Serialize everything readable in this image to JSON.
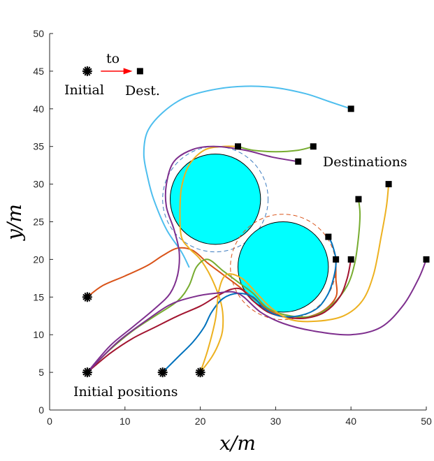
{
  "chart_data": {
    "type": "line",
    "xlabel": "x/m",
    "ylabel": "y/m",
    "xlim": [
      0,
      50
    ],
    "ylim": [
      0,
      50
    ],
    "xticks": [
      "0",
      "10",
      "20",
      "30",
      "40",
      "50"
    ],
    "yticks": [
      "0",
      "5",
      "10",
      "15",
      "20",
      "25",
      "30",
      "35",
      "40",
      "45",
      "50"
    ],
    "obstacles": [
      {
        "name": "obstacle-1",
        "center": [
          22,
          28
        ],
        "radius": 6,
        "safety_radius": 7,
        "safety_color": "#3b7bbf"
      },
      {
        "name": "obstacle-2",
        "center": [
          31,
          19
        ],
        "radius": 6,
        "safety_radius": 7,
        "safety_color": "#d95319"
      }
    ],
    "obstacle_fill": "#00ffff",
    "initial_positions": [
      [
        5,
        15
      ],
      [
        5,
        5
      ],
      [
        15,
        5
      ],
      [
        20,
        5
      ]
    ],
    "destinations": [
      [
        25,
        35
      ],
      [
        35,
        35
      ],
      [
        33,
        33
      ],
      [
        40,
        40
      ],
      [
        37,
        23
      ],
      [
        38,
        20
      ],
      [
        40,
        20
      ],
      [
        41,
        28
      ],
      [
        45,
        30
      ],
      [
        50,
        20
      ]
    ],
    "legend_example": {
      "initial": [
        5,
        45
      ],
      "destination": [
        12,
        45
      ]
    },
    "annotations": {
      "initial": "Initial",
      "to": "to",
      "dest": "Dest.",
      "destinations": "Destinations",
      "initial_positions": "Initial positions"
    },
    "series": [
      {
        "name": "traj-lightblue",
        "color": "#4DBEEE",
        "points": [
          [
            18.5,
            19
          ],
          [
            17.5,
            21
          ],
          [
            15.5,
            24
          ],
          [
            13.8,
            28
          ],
          [
            13,
            31
          ],
          [
            12.5,
            34
          ],
          [
            13,
            37
          ],
          [
            15,
            39.5
          ],
          [
            18,
            41.5
          ],
          [
            22,
            42.6
          ],
          [
            26,
            43
          ],
          [
            30,
            42.8
          ],
          [
            34,
            42
          ],
          [
            37,
            41
          ],
          [
            40,
            40
          ]
        ]
      },
      {
        "name": "traj-orange",
        "color": "#D95319",
        "points": [
          [
            5,
            15
          ],
          [
            7,
            16.5
          ],
          [
            10,
            17.8
          ],
          [
            13,
            19.2
          ],
          [
            15,
            20.5
          ],
          [
            17,
            21.5
          ],
          [
            19,
            21.2
          ],
          [
            21,
            19.5
          ],
          [
            23,
            18
          ],
          [
            25,
            16.5
          ],
          [
            27.5,
            14.5
          ],
          [
            30,
            12.8
          ],
          [
            33,
            12.2
          ],
          [
            36,
            13
          ],
          [
            38,
            15
          ],
          [
            38,
            17.5
          ],
          [
            38,
            20
          ]
        ]
      },
      {
        "name": "traj-yellow",
        "color": "#EDB120",
        "points": [
          [
            20,
            5
          ],
          [
            21.5,
            7
          ],
          [
            22.5,
            9
          ],
          [
            23,
            11
          ],
          [
            22.8,
            14
          ],
          [
            21.5,
            17.5
          ],
          [
            20,
            20
          ],
          [
            18.5,
            21.5
          ],
          [
            17.5,
            23
          ],
          [
            17.3,
            26
          ],
          [
            17.5,
            29.5
          ],
          [
            18.5,
            32.5
          ],
          [
            20.5,
            34.5
          ],
          [
            23,
            35
          ],
          [
            25,
            35
          ]
        ]
      },
      {
        "name": "traj-green",
        "color": "#77AC30",
        "points": [
          [
            5,
            5
          ],
          [
            8,
            8
          ],
          [
            11,
            10.5
          ],
          [
            14,
            12.5
          ],
          [
            17,
            14.5
          ],
          [
            18.5,
            16.5
          ],
          [
            19.5,
            19
          ],
          [
            21,
            20
          ],
          [
            23,
            18.5
          ],
          [
            25,
            17
          ],
          [
            27,
            15.5
          ],
          [
            29,
            13.5
          ],
          [
            32,
            12.5
          ],
          [
            35,
            12.5
          ],
          [
            37.5,
            14
          ],
          [
            39.5,
            16.5
          ],
          [
            40.5,
            19.5
          ],
          [
            41,
            23
          ],
          [
            41.2,
            26
          ],
          [
            41,
            28
          ]
        ]
      },
      {
        "name": "traj-darkred",
        "color": "#A2142F",
        "points": [
          [
            5,
            5
          ],
          [
            8,
            7.5
          ],
          [
            11,
            9.5
          ],
          [
            14,
            11
          ],
          [
            17,
            12.5
          ],
          [
            20,
            13.8
          ],
          [
            22,
            15
          ],
          [
            24,
            16
          ],
          [
            25.5,
            16
          ],
          [
            27,
            14.5
          ],
          [
            29,
            13
          ],
          [
            31.5,
            12.3
          ],
          [
            34,
            12.2
          ],
          [
            36.5,
            13
          ],
          [
            38.5,
            15
          ],
          [
            39.5,
            17.5
          ],
          [
            40,
            20
          ]
        ]
      },
      {
        "name": "traj-purple-1",
        "color": "#7E2F8E",
        "points": [
          [
            5,
            5
          ],
          [
            8,
            8.5
          ],
          [
            11,
            11
          ],
          [
            14,
            13.5
          ],
          [
            16,
            15.5
          ],
          [
            17,
            18
          ],
          [
            17.2,
            21
          ],
          [
            16.5,
            24
          ],
          [
            15.5,
            27
          ],
          [
            15.5,
            30
          ],
          [
            16.5,
            33
          ],
          [
            19,
            34.6
          ],
          [
            22,
            35
          ],
          [
            26,
            34.5
          ],
          [
            29.5,
            33.6
          ],
          [
            33,
            33
          ]
        ]
      },
      {
        "name": "traj-blue",
        "color": "#0072BD",
        "points": [
          [
            15,
            5
          ],
          [
            17,
            7
          ],
          [
            19,
            9
          ],
          [
            20.5,
            11
          ],
          [
            21.5,
            13
          ],
          [
            23,
            14.8
          ],
          [
            25,
            15.5
          ],
          [
            27,
            15
          ],
          [
            28.5,
            13.5
          ],
          [
            30.5,
            12.5
          ],
          [
            33,
            12.5
          ],
          [
            35.5,
            13.5
          ],
          [
            37,
            15.5
          ],
          [
            37.8,
            18
          ],
          [
            38,
            20
          ],
          [
            37.5,
            22
          ],
          [
            37,
            23
          ]
        ]
      },
      {
        "name": "traj-green-2",
        "color": "#77AC30",
        "points": [
          [
            25,
            35
          ],
          [
            27,
            34.5
          ],
          [
            30,
            34.3
          ],
          [
            33,
            34.5
          ],
          [
            35,
            35
          ]
        ]
      },
      {
        "name": "traj-yellow-2",
        "color": "#EDB120",
        "points": [
          [
            20,
            5
          ],
          [
            21,
            8
          ],
          [
            22,
            12
          ],
          [
            22.5,
            16
          ],
          [
            23.5,
            18
          ],
          [
            25.5,
            17.5
          ],
          [
            27.5,
            15.5
          ],
          [
            29.5,
            13.5
          ],
          [
            32,
            12
          ],
          [
            35.5,
            11.8
          ],
          [
            39,
            12.5
          ],
          [
            41.5,
            14.5
          ],
          [
            43,
            18
          ],
          [
            44,
            23
          ],
          [
            44.7,
            27
          ],
          [
            45,
            30
          ]
        ]
      },
      {
        "name": "traj-purple-2",
        "color": "#7E2F8E",
        "points": [
          [
            5,
            5
          ],
          [
            9,
            9
          ],
          [
            13,
            12
          ],
          [
            16,
            14
          ],
          [
            19,
            15
          ],
          [
            22,
            15.5
          ],
          [
            25,
            15.5
          ],
          [
            28,
            13
          ],
          [
            31,
            11.5
          ],
          [
            35,
            10.5
          ],
          [
            40,
            10
          ],
          [
            44,
            11
          ],
          [
            47,
            14
          ],
          [
            49,
            17.5
          ],
          [
            50,
            20
          ]
        ]
      }
    ]
  }
}
